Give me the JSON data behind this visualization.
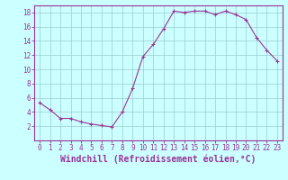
{
  "x": [
    0,
    1,
    2,
    3,
    4,
    5,
    6,
    7,
    8,
    9,
    10,
    11,
    12,
    13,
    14,
    15,
    16,
    17,
    18,
    19,
    20,
    21,
    22,
    23
  ],
  "y": [
    5.3,
    4.3,
    3.1,
    3.1,
    2.6,
    2.3,
    2.1,
    1.9,
    4.0,
    7.3,
    11.8,
    13.5,
    15.7,
    18.2,
    18.0,
    18.2,
    18.2,
    17.7,
    18.2,
    17.7,
    17.0,
    14.5,
    12.7,
    11.2
  ],
  "line_color": "#993399",
  "marker": "+",
  "marker_size": 3.5,
  "background_color": "#ccffff",
  "grid_color": "#99cccc",
  "xlabel": "Windchill (Refroidissement éolien,°C)",
  "ylabel": "",
  "ylim": [
    0,
    19
  ],
  "xlim": [
    -0.5,
    23.5
  ],
  "yticks": [
    2,
    4,
    6,
    8,
    10,
    12,
    14,
    16,
    18
  ],
  "xtick_labels": [
    "0",
    "1",
    "2",
    "3",
    "4",
    "5",
    "6",
    "7",
    "8",
    "9",
    "10",
    "11",
    "12",
    "13",
    "14",
    "15",
    "16",
    "17",
    "18",
    "19",
    "20",
    "21",
    "22",
    "23"
  ],
  "tick_color": "#993399",
  "tick_fontsize": 5.5,
  "xlabel_fontsize": 7.0,
  "spine_color": "#993399",
  "line_width": 0.8,
  "marker_edge_width": 0.8
}
